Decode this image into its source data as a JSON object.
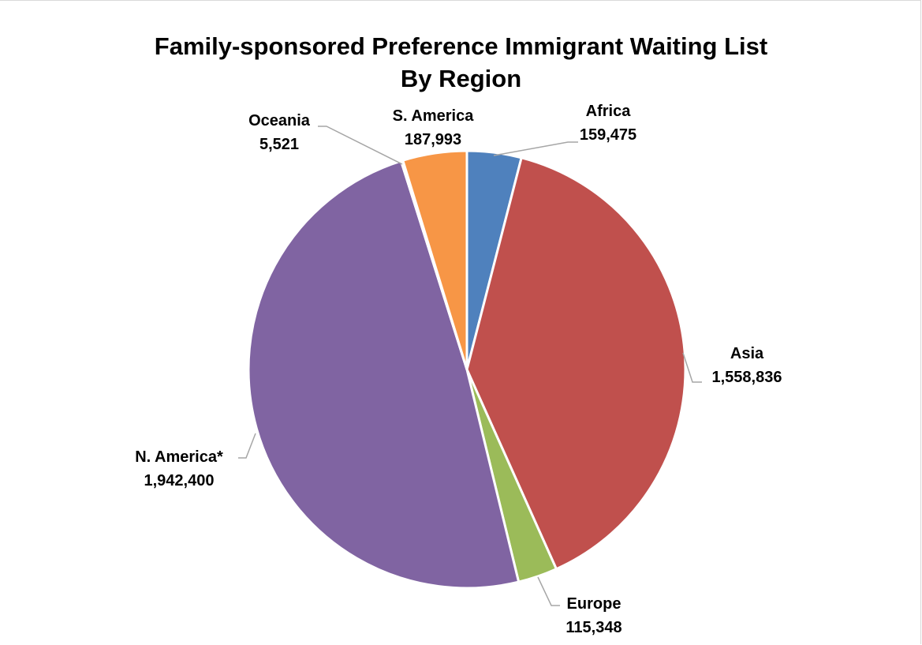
{
  "chart_data": {
    "type": "pie",
    "title": [
      "Family-sponsored Preference Immigrant Waiting List",
      "By Region"
    ],
    "start_angle_deg": 0,
    "direction": "clockwise",
    "slices": [
      {
        "name": "Africa",
        "value": 159475,
        "value_label": "159,475",
        "color": "#4f81bd"
      },
      {
        "name": "Asia",
        "value": 1558836,
        "value_label": "1,558,836",
        "color": "#c0504d"
      },
      {
        "name": "Europe",
        "value": 115348,
        "value_label": "115,348",
        "color": "#9bbb59"
      },
      {
        "name": "N. America*",
        "value": 1942400,
        "value_label": "1,942,400",
        "color": "#8064a2"
      },
      {
        "name": "Oceania",
        "value": 5521,
        "value_label": "5,521",
        "color": "#4bacc6"
      },
      {
        "name": "S. America",
        "value": 187993,
        "value_label": "187,993",
        "color": "#f79646"
      }
    ],
    "legend": "none",
    "data_labels": "outside-with-leader-lines"
  }
}
